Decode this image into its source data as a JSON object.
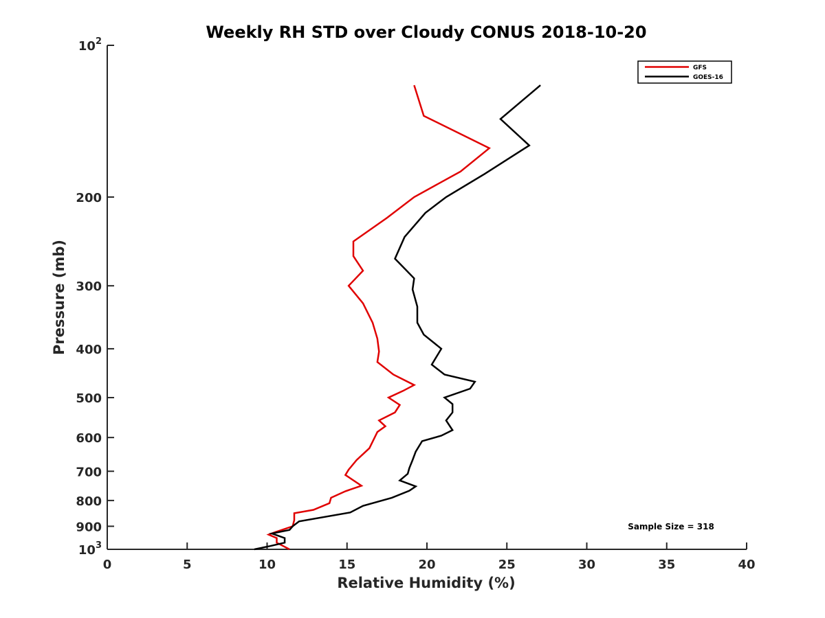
{
  "chart_data": {
    "type": "line",
    "title": "Weekly RH STD over Cloudy CONUS 2018-10-20",
    "xlabel": "Relative Humidity (%)",
    "ylabel": "Pressure (mb)",
    "xlim": [
      0,
      40
    ],
    "ylim": [
      1000,
      100
    ],
    "yscale": "log",
    "xticks": [
      0,
      5,
      10,
      15,
      20,
      25,
      30,
      35,
      40
    ],
    "xtick_labels": [
      "0",
      "5",
      "10",
      "15",
      "20",
      "25",
      "30",
      "35",
      "40"
    ],
    "yticks": [
      {
        "value": 100,
        "label": "10",
        "sup": "2"
      },
      {
        "value": 200,
        "label": "200"
      },
      {
        "value": 300,
        "label": "300"
      },
      {
        "value": 400,
        "label": "400"
      },
      {
        "value": 500,
        "label": "500"
      },
      {
        "value": 600,
        "label": "600"
      },
      {
        "value": 700,
        "label": "700"
      },
      {
        "value": 800,
        "label": "800"
      },
      {
        "value": 900,
        "label": "900"
      },
      {
        "value": 1000,
        "label": "10",
        "sup": "3"
      }
    ],
    "legend_position": "top-right",
    "series": [
      {
        "name": "GFS",
        "color": "#e00000",
        "points": [
          [
            19.2,
            120
          ],
          [
            19.8,
            138
          ],
          [
            23.9,
            160
          ],
          [
            22.1,
            178
          ],
          [
            19.2,
            200
          ],
          [
            17.5,
            220
          ],
          [
            15.4,
            245
          ],
          [
            15.4,
            262
          ],
          [
            16.0,
            280
          ],
          [
            15.1,
            300
          ],
          [
            16.0,
            325
          ],
          [
            16.6,
            355
          ],
          [
            16.9,
            382
          ],
          [
            17.0,
            405
          ],
          [
            16.9,
            425
          ],
          [
            17.9,
            450
          ],
          [
            19.2,
            472
          ],
          [
            18.5,
            485
          ],
          [
            17.6,
            500
          ],
          [
            18.3,
            517
          ],
          [
            18.0,
            535
          ],
          [
            17.0,
            555
          ],
          [
            17.4,
            570
          ],
          [
            16.9,
            585
          ],
          [
            16.4,
            630
          ],
          [
            15.6,
            665
          ],
          [
            15.1,
            695
          ],
          [
            14.9,
            712
          ],
          [
            15.9,
            748
          ],
          [
            14.9,
            767
          ],
          [
            14.0,
            790
          ],
          [
            13.9,
            810
          ],
          [
            12.9,
            835
          ],
          [
            11.7,
            848
          ],
          [
            11.7,
            875
          ],
          [
            11.6,
            900
          ],
          [
            10.5,
            925
          ],
          [
            10.1,
            935
          ],
          [
            10.6,
            950
          ],
          [
            10.6,
            970
          ],
          [
            11.4,
            1000
          ]
        ]
      },
      {
        "name": "GOES-16",
        "color": "#000000",
        "points": [
          [
            27.1,
            120
          ],
          [
            24.6,
            140
          ],
          [
            26.4,
            158
          ],
          [
            23.6,
            180
          ],
          [
            21.2,
            200
          ],
          [
            19.9,
            215
          ],
          [
            18.6,
            240
          ],
          [
            18.0,
            265
          ],
          [
            19.2,
            290
          ],
          [
            19.1,
            305
          ],
          [
            19.4,
            330
          ],
          [
            19.4,
            355
          ],
          [
            19.8,
            375
          ],
          [
            20.9,
            400
          ],
          [
            20.3,
            430
          ],
          [
            21.1,
            450
          ],
          [
            23.0,
            465
          ],
          [
            22.7,
            480
          ],
          [
            21.1,
            500
          ],
          [
            21.6,
            515
          ],
          [
            21.6,
            535
          ],
          [
            21.2,
            555
          ],
          [
            21.6,
            580
          ],
          [
            20.9,
            595
          ],
          [
            19.7,
            610
          ],
          [
            19.3,
            640
          ],
          [
            19.1,
            665
          ],
          [
            18.9,
            690
          ],
          [
            18.8,
            708
          ],
          [
            18.3,
            730
          ],
          [
            19.3,
            750
          ],
          [
            18.9,
            765
          ],
          [
            17.8,
            790
          ],
          [
            16.0,
            820
          ],
          [
            15.2,
            845
          ],
          [
            12.0,
            880
          ],
          [
            11.6,
            900
          ],
          [
            11.4,
            915
          ],
          [
            10.3,
            930
          ],
          [
            11.1,
            950
          ],
          [
            11.1,
            970
          ],
          [
            10.2,
            985
          ],
          [
            9.2,
            1000
          ]
        ]
      }
    ],
    "annotation": "Sample Size = 318"
  }
}
